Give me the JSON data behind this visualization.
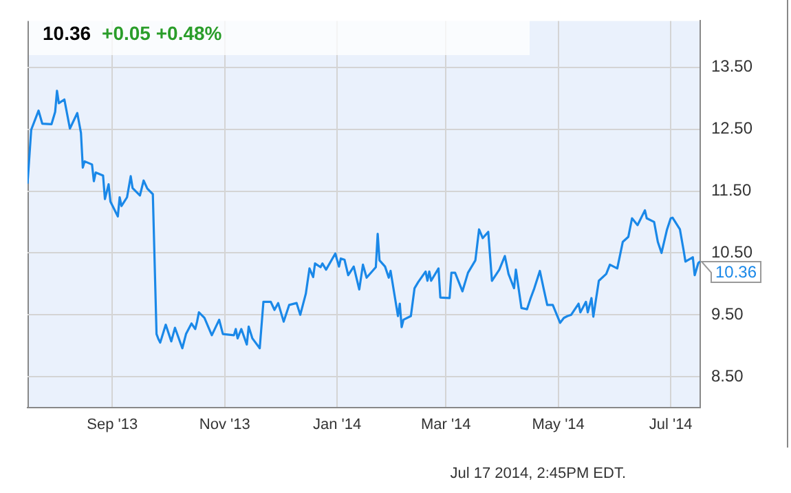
{
  "chart_data": {
    "type": "line",
    "title": "10.36",
    "subtitle": "+0.05 +0.48%",
    "x": [
      "2013-07-17",
      "2013-07-19",
      "2013-07-23",
      "2013-07-25",
      "2013-07-30",
      "2013-08-01",
      "2013-08-02",
      "2013-08-03",
      "2013-08-06",
      "2013-08-09",
      "2013-08-13",
      "2013-08-15",
      "2013-08-16",
      "2013-08-17",
      "2013-08-21",
      "2013-08-22",
      "2013-08-23",
      "2013-08-27",
      "2013-08-28",
      "2013-08-30",
      "2013-08-31",
      "2013-09-04",
      "2013-09-05",
      "2013-09-06",
      "2013-09-09",
      "2013-09-11",
      "2013-09-12",
      "2013-09-16",
      "2013-09-18",
      "2013-09-20",
      "2013-09-23",
      "2013-09-25",
      "2013-09-26",
      "2013-09-27",
      "2013-09-30",
      "2013-10-03",
      "2013-10-05",
      "2013-10-09",
      "2013-10-11",
      "2013-10-14",
      "2013-10-16",
      "2013-10-17",
      "2013-10-18",
      "2013-10-21",
      "2013-10-25",
      "2013-10-29",
      "2013-10-31",
      "2013-11-06",
      "2013-11-07",
      "2013-11-08",
      "2013-11-10",
      "2013-11-13",
      "2013-11-14",
      "2013-11-16",
      "2013-11-20",
      "2013-11-22",
      "2013-11-26",
      "2013-11-28",
      "2013-11-30",
      "2013-12-03",
      "2013-12-06",
      "2013-12-10",
      "2013-12-12",
      "2013-12-15",
      "2013-12-17",
      "2013-12-19",
      "2013-12-20",
      "2013-12-23",
      "2013-12-24",
      "2013-12-26",
      "2013-12-31",
      "2014-01-02",
      "2014-01-03",
      "2014-01-05",
      "2014-01-07",
      "2014-01-10",
      "2014-01-13",
      "2014-01-15",
      "2014-01-17",
      "2014-01-22",
      "2014-01-23",
      "2014-01-24",
      "2014-01-27",
      "2014-01-29",
      "2014-01-30",
      "2014-02-03",
      "2014-02-04",
      "2014-02-05",
      "2014-02-06",
      "2014-02-10",
      "2014-02-12",
      "2014-02-14",
      "2014-02-18",
      "2014-02-19",
      "2014-02-20",
      "2014-02-21",
      "2014-02-25",
      "2014-02-26",
      "2014-03-03",
      "2014-03-04",
      "2014-03-06",
      "2014-03-10",
      "2014-03-13",
      "2014-03-17",
      "2014-03-19",
      "2014-03-21",
      "2014-03-24",
      "2014-03-26",
      "2014-03-30",
      "2014-04-02",
      "2014-04-04",
      "2014-04-07",
      "2014-04-08",
      "2014-04-11",
      "2014-04-14",
      "2014-04-16",
      "2014-04-18",
      "2014-04-21",
      "2014-04-23",
      "2014-04-25",
      "2014-04-28",
      "2014-05-02",
      "2014-05-04",
      "2014-05-06",
      "2014-05-08",
      "2014-05-12",
      "2014-05-13",
      "2014-05-16",
      "2014-05-17",
      "2014-05-19",
      "2014-05-20",
      "2014-05-23",
      "2014-05-27",
      "2014-05-29",
      "2014-06-02",
      "2014-06-05",
      "2014-06-08",
      "2014-06-10",
      "2014-06-13",
      "2014-06-17",
      "2014-06-18",
      "2014-06-22",
      "2014-06-24",
      "2014-06-26",
      "2014-06-29",
      "2014-07-01",
      "2014-07-02",
      "2014-07-06",
      "2014-07-08",
      "2014-07-09",
      "2014-07-13",
      "2014-07-14",
      "2014-07-16",
      "2014-07-17"
    ],
    "series": [
      {
        "color": "#1a88e8",
        "values": [
          11.62,
          12.49,
          12.8,
          12.59,
          12.58,
          12.78,
          13.12,
          12.92,
          12.98,
          12.51,
          12.76,
          12.44,
          11.88,
          11.98,
          11.93,
          11.66,
          11.8,
          11.75,
          11.37,
          11.61,
          11.33,
          11.09,
          11.4,
          11.26,
          11.4,
          11.74,
          11.55,
          11.43,
          11.67,
          11.54,
          11.45,
          9.19,
          9.11,
          9.05,
          9.34,
          9.07,
          9.29,
          8.96,
          9.19,
          9.36,
          9.27,
          9.39,
          9.54,
          9.45,
          9.17,
          9.42,
          9.19,
          9.17,
          9.27,
          9.12,
          9.27,
          9.02,
          9.31,
          9.12,
          8.96,
          9.71,
          9.71,
          9.58,
          9.69,
          9.39,
          9.66,
          9.69,
          9.5,
          9.84,
          10.25,
          10.11,
          10.33,
          10.27,
          10.33,
          10.23,
          10.49,
          10.28,
          10.41,
          10.39,
          10.14,
          10.28,
          9.91,
          10.31,
          10.1,
          10.27,
          10.81,
          10.38,
          10.28,
          10.1,
          10.21,
          9.48,
          9.68,
          9.3,
          9.42,
          9.48,
          9.93,
          10.03,
          10.2,
          10.05,
          10.2,
          10.05,
          10.25,
          9.78,
          9.77,
          10.18,
          10.18,
          9.88,
          10.18,
          10.38,
          10.88,
          10.74,
          10.84,
          10.05,
          10.23,
          10.45,
          10.16,
          9.93,
          10.23,
          9.61,
          9.59,
          9.77,
          9.93,
          10.21,
          9.93,
          9.66,
          9.66,
          9.37,
          9.45,
          9.48,
          9.5,
          9.68,
          9.54,
          9.71,
          9.54,
          9.77,
          9.47,
          10.05,
          10.16,
          10.31,
          10.25,
          10.68,
          10.76,
          11.06,
          10.95,
          11.19,
          11.06,
          11.0,
          10.68,
          10.5,
          10.88,
          11.06,
          11.07,
          10.88,
          10.54,
          10.36,
          10.43,
          10.14,
          10.34,
          10.36
        ]
      }
    ],
    "xlim": [
      "2013-07-17",
      "2014-07-17"
    ],
    "xticks": [
      {
        "value": "2013-09-01",
        "label": "Sep '13"
      },
      {
        "value": "2013-11-01",
        "label": "Nov '13"
      },
      {
        "value": "2014-01-01",
        "label": "Jan '14"
      },
      {
        "value": "2014-03-01",
        "label": "Mar '14"
      },
      {
        "value": "2014-05-01",
        "label": "May '14"
      },
      {
        "value": "2014-07-01",
        "label": "Jul '14"
      }
    ],
    "ylim": [
      8,
      14.25
    ],
    "yticks": [
      {
        "value": 8.5,
        "label": "8.50"
      },
      {
        "value": 9.5,
        "label": "9.50"
      },
      {
        "value": 10.5,
        "label": "10.50"
      },
      {
        "value": 11.5,
        "label": "11.50"
      },
      {
        "value": 12.5,
        "label": "12.50"
      },
      {
        "value": 13.5,
        "label": "13.50"
      }
    ],
    "grid": true,
    "legend": false,
    "marker": "none",
    "line_style": "solid",
    "annotations": [
      {
        "text": "10.36",
        "x": "2014-07-17",
        "y": 10.36
      },
      "Jul 17 2014, 2:45PM EDT."
    ]
  }
}
